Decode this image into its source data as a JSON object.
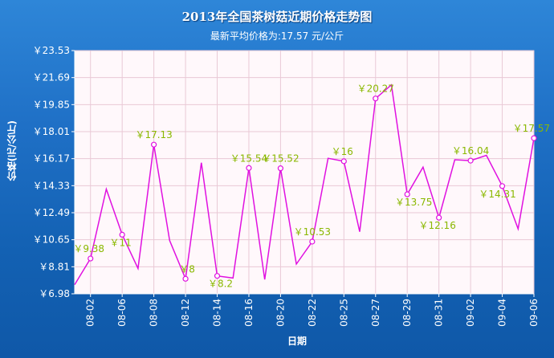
{
  "title": "2013年全国茶树菇近期价格走势图",
  "subtitle": "最新平均价格为:17.57 元/公斤",
  "colors": {
    "line": "#e011e0",
    "label": "#8ab800",
    "plot_bg": "#fff8fb",
    "axis_text": "#ffffff"
  },
  "chart_data": {
    "type": "line",
    "title": "2013年全国茶树菇近期价格走势图",
    "subtitle": "最新平均价格为:17.57 元/公斤",
    "xlabel": "日期",
    "ylabel": "价格(元/公斤)",
    "ylim": [
      6.98,
      23.53
    ],
    "yticks": [
      "￥23.53",
      "￥21.69",
      "￥19.85",
      "￥18.01",
      "￥16.17",
      "￥14.33",
      "￥12.49",
      "￥10.65",
      "￥8.81",
      "￥6.98"
    ],
    "xticks": [
      "08-02",
      "08-06",
      "08-08",
      "08-12",
      "08-14",
      "08-16",
      "08-20",
      "08-22",
      "08-25",
      "08-27",
      "08-29",
      "08-31",
      "09-02",
      "09-04",
      "09-06"
    ],
    "grid": true,
    "series": [
      {
        "values": [
          7.6,
          9.38,
          14.1,
          11,
          8.7,
          17.13,
          10.6,
          8,
          15.9,
          8.2,
          8.05,
          15.54,
          7.95,
          15.52,
          9.0,
          10.53,
          16.2,
          16,
          11.2,
          20.27,
          21.2,
          13.75,
          15.6,
          12.16,
          16.1,
          16.04,
          16.4,
          14.31,
          11.4,
          17.57
        ]
      }
    ],
    "data_labels": [
      {
        "i": 1,
        "text": "￥9.38"
      },
      {
        "i": 3,
        "text": "￥11"
      },
      {
        "i": 5,
        "text": "￥17.13"
      },
      {
        "i": 7,
        "text": "￥8"
      },
      {
        "i": 9,
        "text": "￥8.2"
      },
      {
        "i": 11,
        "text": "￥15.54"
      },
      {
        "i": 13,
        "text": "￥15.52"
      },
      {
        "i": 15,
        "text": "￥10.53"
      },
      {
        "i": 17,
        "text": "￥16"
      },
      {
        "i": 19,
        "text": "￥20.27"
      },
      {
        "i": 21,
        "text": "￥13.75"
      },
      {
        "i": 23,
        "text": "￥12.16"
      },
      {
        "i": 25,
        "text": "￥16.04"
      },
      {
        "i": 27,
        "text": "￥14.31"
      },
      {
        "i": 29,
        "text": "￥17.57"
      }
    ]
  }
}
